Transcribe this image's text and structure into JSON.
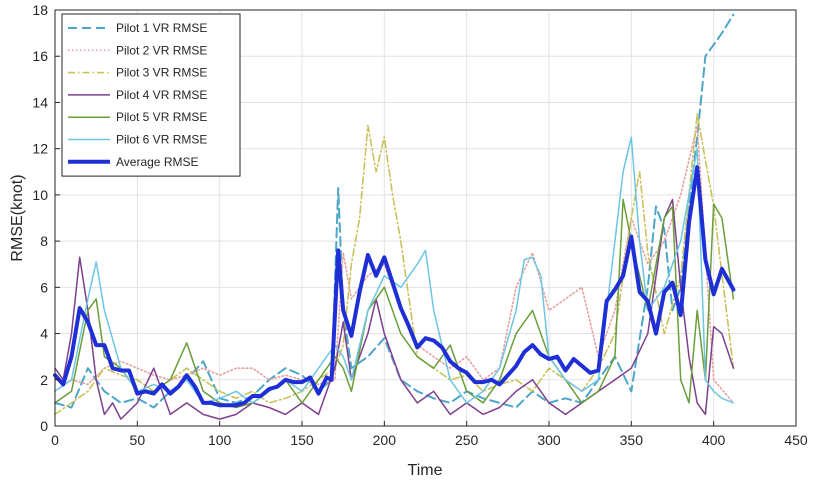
{
  "chart_data": {
    "type": "line",
    "xlabel": "Time",
    "ylabel": "RMSE(knot)",
    "xlim": [
      0,
      450
    ],
    "ylim": [
      0,
      18
    ],
    "x_ticks": [
      0,
      50,
      100,
      150,
      200,
      250,
      300,
      350,
      400,
      450
    ],
    "y_ticks": [
      0,
      2,
      4,
      6,
      8,
      10,
      12,
      14,
      16,
      18
    ],
    "grid": true,
    "legend_position": "top-left",
    "series": [
      {
        "name": "Pilot 1 VR RMSE",
        "color": "#4da6c8",
        "style": "dashed",
        "x": [
          0,
          10,
          20,
          30,
          40,
          50,
          60,
          70,
          80,
          90,
          100,
          110,
          120,
          130,
          140,
          150,
          160,
          168,
          172,
          175,
          180,
          190,
          200,
          210,
          220,
          230,
          240,
          250,
          260,
          270,
          280,
          290,
          300,
          310,
          320,
          330,
          340,
          350,
          360,
          365,
          370,
          375,
          380,
          385,
          390,
          395,
          400,
          405,
          412
        ],
        "y": [
          1.0,
          0.8,
          2.5,
          1.5,
          1.0,
          1.2,
          0.8,
          1.5,
          2.0,
          2.8,
          1.2,
          1.0,
          1.3,
          2.0,
          2.5,
          2.2,
          1.5,
          2.0,
          10.3,
          5.0,
          2.5,
          3.0,
          3.8,
          2.0,
          1.5,
          1.2,
          1.0,
          1.5,
          1.2,
          1.0,
          0.8,
          1.5,
          1.0,
          1.2,
          1.0,
          2.0,
          3.0,
          1.5,
          6.0,
          9.5,
          8.5,
          5.0,
          6.0,
          9.5,
          12.5,
          16.0,
          16.5,
          17.0,
          17.8
        ]
      },
      {
        "name": "Pilot 2 VR RMSE",
        "color": "#e8a0a0",
        "style": "dotted",
        "x": [
          0,
          10,
          20,
          30,
          40,
          50,
          60,
          70,
          80,
          90,
          100,
          110,
          120,
          130,
          140,
          150,
          160,
          170,
          175,
          180,
          190,
          200,
          210,
          220,
          230,
          240,
          250,
          260,
          270,
          280,
          290,
          300,
          310,
          320,
          330,
          340,
          350,
          360,
          370,
          380,
          390,
          400,
          412
        ],
        "y": [
          1.5,
          2.0,
          1.8,
          2.5,
          2.8,
          2.5,
          2.2,
          2.0,
          2.2,
          2.5,
          2.2,
          2.5,
          2.5,
          2.0,
          2.2,
          2.0,
          1.8,
          2.0,
          7.5,
          5.5,
          6.5,
          7.0,
          5.0,
          3.5,
          3.0,
          2.5,
          3.0,
          2.0,
          2.5,
          6.0,
          7.5,
          5.0,
          5.5,
          6.0,
          3.0,
          5.0,
          9.0,
          7.0,
          8.0,
          10.0,
          13.0,
          2.0,
          1.0
        ]
      },
      {
        "name": "Pilot 3 VR RMSE",
        "color": "#c9c25a",
        "style": "dashdot",
        "x": [
          0,
          10,
          20,
          30,
          40,
          50,
          60,
          70,
          80,
          90,
          100,
          110,
          120,
          130,
          140,
          150,
          160,
          170,
          175,
          180,
          185,
          190,
          195,
          200,
          205,
          210,
          220,
          230,
          240,
          250,
          260,
          270,
          280,
          290,
          300,
          310,
          320,
          330,
          340,
          350,
          355,
          360,
          370,
          380,
          390,
          400,
          412
        ],
        "y": [
          0.5,
          1.0,
          1.5,
          2.5,
          2.2,
          2.0,
          1.5,
          2.0,
          2.5,
          2.0,
          1.5,
          1.2,
          1.5,
          1.0,
          1.2,
          1.5,
          2.0,
          2.5,
          3.5,
          7.0,
          9.0,
          13.0,
          11.0,
          12.5,
          10.0,
          8.0,
          3.0,
          2.5,
          2.0,
          2.2,
          1.5,
          1.8,
          2.0,
          1.5,
          2.5,
          2.0,
          1.5,
          2.5,
          4.0,
          9.0,
          11.0,
          7.5,
          4.0,
          6.5,
          13.5,
          9.5,
          2.5
        ]
      },
      {
        "name": "Pilot 4 VR RMSE",
        "color": "#7e3f8f",
        "style": "solid",
        "x": [
          0,
          5,
          10,
          15,
          20,
          25,
          30,
          35,
          40,
          50,
          60,
          70,
          80,
          90,
          100,
          110,
          120,
          130,
          140,
          150,
          160,
          170,
          175,
          180,
          185,
          190,
          195,
          200,
          210,
          220,
          230,
          240,
          250,
          260,
          270,
          280,
          290,
          300,
          310,
          320,
          330,
          340,
          350,
          360,
          370,
          375,
          380,
          385,
          390,
          395,
          400,
          405,
          412
        ],
        "y": [
          2.5,
          2.0,
          4.0,
          7.3,
          5.0,
          2.0,
          0.5,
          1.0,
          0.3,
          1.0,
          2.5,
          0.5,
          1.0,
          0.5,
          0.3,
          0.5,
          1.0,
          0.8,
          0.5,
          1.0,
          0.5,
          2.5,
          4.5,
          2.0,
          3.0,
          4.0,
          5.5,
          4.0,
          2.0,
          1.0,
          1.5,
          0.5,
          1.0,
          0.5,
          0.8,
          1.5,
          2.0,
          1.0,
          0.5,
          1.0,
          1.5,
          2.0,
          2.5,
          4.0,
          9.0,
          9.8,
          6.0,
          3.0,
          1.0,
          0.5,
          4.3,
          4.0,
          2.5
        ]
      },
      {
        "name": "Pilot 5 VR RMSE",
        "color": "#6a9e3b",
        "style": "solid",
        "x": [
          0,
          10,
          20,
          25,
          30,
          40,
          50,
          60,
          70,
          80,
          90,
          100,
          110,
          120,
          130,
          140,
          150,
          160,
          170,
          175,
          180,
          190,
          200,
          210,
          220,
          230,
          240,
          250,
          260,
          270,
          280,
          290,
          300,
          310,
          320,
          330,
          340,
          345,
          350,
          360,
          370,
          375,
          380,
          385,
          390,
          395,
          400,
          405,
          412
        ],
        "y": [
          1.0,
          1.5,
          5.0,
          5.5,
          3.0,
          2.5,
          1.5,
          1.5,
          2.0,
          3.6,
          1.5,
          1.0,
          0.8,
          1.0,
          1.5,
          2.0,
          1.0,
          2.0,
          3.0,
          2.5,
          1.5,
          5.0,
          6.0,
          4.0,
          3.0,
          2.5,
          3.5,
          1.5,
          1.0,
          2.0,
          4.0,
          5.0,
          3.0,
          2.0,
          1.0,
          1.5,
          3.0,
          9.8,
          8.0,
          5.0,
          9.0,
          9.5,
          2.0,
          1.0,
          5.0,
          2.0,
          9.6,
          9.0,
          5.5
        ]
      },
      {
        "name": "Pilot 6 VR RMSE",
        "color": "#6cc6e3",
        "style": "solid",
        "x": [
          0,
          10,
          20,
          25,
          30,
          40,
          50,
          60,
          70,
          80,
          90,
          100,
          110,
          120,
          130,
          140,
          150,
          160,
          170,
          175,
          180,
          190,
          200,
          210,
          220,
          225,
          230,
          240,
          250,
          260,
          270,
          280,
          285,
          290,
          295,
          300,
          310,
          320,
          330,
          340,
          345,
          350,
          355,
          360,
          370,
          380,
          385,
          390,
          395,
          400,
          405,
          412
        ],
        "y": [
          1.5,
          2.0,
          5.5,
          7.1,
          5.0,
          2.5,
          1.5,
          1.8,
          1.5,
          2.0,
          1.0,
          1.2,
          1.5,
          1.0,
          1.5,
          2.0,
          1.5,
          2.5,
          3.5,
          3.0,
          2.0,
          5.0,
          6.5,
          6.0,
          7.0,
          7.6,
          5.0,
          2.0,
          1.0,
          1.5,
          2.5,
          5.0,
          7.2,
          7.3,
          6.5,
          3.0,
          2.0,
          1.5,
          2.0,
          8.0,
          11.0,
          12.5,
          8.0,
          5.0,
          6.0,
          8.0,
          10.0,
          12.0,
          2.0,
          1.5,
          1.2,
          1.0
        ]
      },
      {
        "name": "Average RMSE",
        "color": "#1f2fd6",
        "style": "thick",
        "x": [
          0,
          5,
          10,
          15,
          20,
          25,
          30,
          35,
          40,
          45,
          50,
          55,
          60,
          65,
          70,
          75,
          80,
          85,
          90,
          95,
          100,
          105,
          110,
          115,
          120,
          125,
          130,
          135,
          140,
          145,
          150,
          155,
          160,
          165,
          168,
          172,
          175,
          180,
          185,
          190,
          195,
          200,
          205,
          210,
          215,
          220,
          225,
          230,
          235,
          240,
          245,
          250,
          255,
          260,
          265,
          270,
          275,
          280,
          285,
          290,
          295,
          300,
          305,
          310,
          315,
          320,
          325,
          330,
          335,
          340,
          345,
          350,
          355,
          360,
          365,
          370,
          375,
          380,
          385,
          390,
          395,
          400,
          405,
          412
        ],
        "y": [
          2.2,
          1.8,
          3.0,
          5.1,
          4.5,
          3.5,
          3.5,
          2.5,
          2.4,
          2.4,
          1.4,
          1.5,
          1.4,
          1.8,
          1.4,
          1.7,
          2.2,
          1.7,
          1.0,
          1.0,
          0.9,
          0.9,
          0.9,
          1.0,
          1.3,
          1.3,
          1.6,
          1.7,
          2.0,
          1.9,
          1.9,
          2.1,
          1.4,
          2.1,
          2.0,
          7.6,
          5.0,
          3.9,
          5.8,
          7.4,
          6.5,
          7.3,
          6.2,
          5.1,
          4.3,
          3.4,
          3.8,
          3.7,
          3.4,
          2.8,
          2.5,
          2.3,
          1.9,
          1.9,
          2.0,
          1.8,
          2.2,
          2.6,
          3.2,
          3.5,
          3.1,
          2.9,
          3.0,
          2.4,
          2.9,
          2.6,
          2.3,
          2.4,
          5.4,
          5.9,
          6.5,
          8.2,
          5.8,
          5.4,
          4.0,
          5.8,
          6.2,
          4.8,
          8.8,
          11.2,
          7.2,
          5.7,
          6.8,
          5.9
        ]
      }
    ]
  }
}
